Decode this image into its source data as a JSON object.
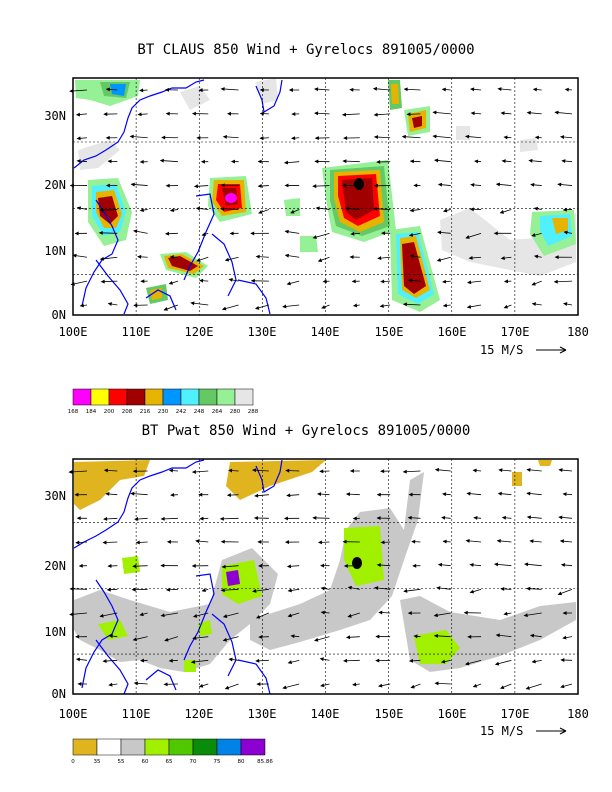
{
  "panels": [
    {
      "title": "BT CLAUS 850 Wind + Gyrelocs 891005/0000",
      "x_ticks": [
        "100E",
        "110E",
        "120E",
        "130E",
        "140E",
        "150E",
        "160E",
        "170E",
        "180"
      ],
      "y_ticks": [
        "0N",
        "10N",
        "20N",
        "30N"
      ],
      "scale_label": "15 M/S",
      "colorbar": {
        "labels": [
          "168",
          "184",
          "200",
          "208",
          "216",
          "230",
          "242",
          "248",
          "264",
          "280",
          "288"
        ],
        "colors": [
          "#ff00ff",
          "#ffff00",
          "#ff0000",
          "#a00000",
          "#e6b400",
          "#0096ff",
          "#50f0ff",
          "#64c864",
          "#96f096",
          "#e6e6e6"
        ]
      }
    },
    {
      "title": "BT Pwat 850 Wind + Gyrelocs 891005/0000",
      "x_ticks": [
        "100E",
        "110E",
        "120E",
        "130E",
        "140E",
        "150E",
        "160E",
        "170E",
        "180"
      ],
      "y_ticks": [
        "0N",
        "10N",
        "20N",
        "30N"
      ],
      "scale_label": "15 M/S",
      "colorbar": {
        "labels": [
          "0",
          "35",
          "55",
          "60",
          "65",
          "70",
          "75",
          "80",
          "85.86"
        ],
        "colors": [
          "#e0b41e",
          "#ffffff",
          "#c8c8c8",
          "#a0f000",
          "#50c800",
          "#0a8c0a",
          "#0082e6",
          "#8c00d2"
        ]
      }
    }
  ],
  "colors": {
    "coast": "#0000ff",
    "grid": "#000000"
  }
}
